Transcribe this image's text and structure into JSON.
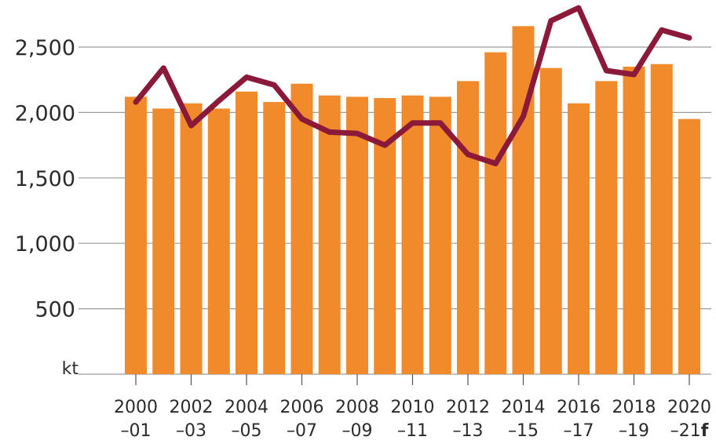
{
  "chart_data": {
    "type": "bar",
    "unit_label": "kt",
    "categories": [
      "2000–01",
      "2001–02",
      "2002–03",
      "2003–04",
      "2004–05",
      "2005–06",
      "2006–07",
      "2007–08",
      "2008–09",
      "2009–10",
      "2010–11",
      "2011–12",
      "2012–13",
      "2013–14",
      "2014–15",
      "2015–16",
      "2016–17",
      "2017–18",
      "2018–19",
      "2019–20",
      "2020–21f"
    ],
    "x_tick_labels": [
      {
        "line1": "2000",
        "line2": "–01",
        "index": 0
      },
      {
        "line1": "2002",
        "line2": "–03",
        "index": 2
      },
      {
        "line1": "2004",
        "line2": "–05",
        "index": 4
      },
      {
        "line1": "2006",
        "line2": "–07",
        "index": 6
      },
      {
        "line1": "2008",
        "line2": "–09",
        "index": 8
      },
      {
        "line1": "2010",
        "line2": "–11",
        "index": 10
      },
      {
        "line1": "2012",
        "line2": "–13",
        "index": 12
      },
      {
        "line1": "2014",
        "line2": "–15",
        "index": 14
      },
      {
        "line1": "2016",
        "line2": "–17",
        "index": 16
      },
      {
        "line1": "2018",
        "line2": "–19",
        "index": 18
      },
      {
        "line1": "2020",
        "line2": "–21",
        "suffix": "f",
        "index": 20
      }
    ],
    "series": [
      {
        "kind": "bar",
        "color": "#f08a2b",
        "values": [
          2120,
          2030,
          2070,
          2030,
          2160,
          2080,
          2220,
          2130,
          2120,
          2110,
          2130,
          2120,
          2240,
          2460,
          2660,
          2340,
          2070,
          2240,
          2350,
          2370,
          1950
        ]
      },
      {
        "kind": "line",
        "color": "#8b1a3a",
        "values": [
          2080,
          2340,
          1900,
          2090,
          2270,
          2210,
          1950,
          1850,
          1840,
          1750,
          1920,
          1920,
          1680,
          1610,
          1970,
          2700,
          2800,
          2320,
          2290,
          2630,
          2570
        ]
      }
    ],
    "yticks": [
      {
        "value": 500,
        "label": "500"
      },
      {
        "value": 1000,
        "label": "1,000"
      },
      {
        "value": 1500,
        "label": "1,500"
      },
      {
        "value": 2000,
        "label": "2,000"
      },
      {
        "value": 2500,
        "label": "2,500"
      }
    ],
    "ylim": [
      0,
      2800
    ],
    "grid": true,
    "gridline_color": "#9a9a9a"
  }
}
